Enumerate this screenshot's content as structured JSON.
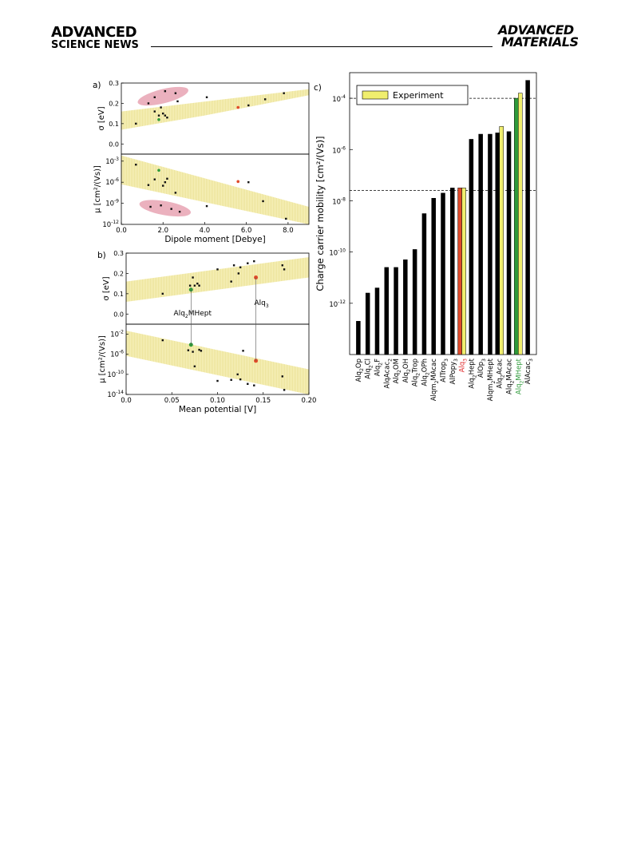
{
  "header": {
    "journal_left_line1": "ADVANCED",
    "journal_left_line2": "SCIENCE NEWS",
    "journal_right_line1": "ADVANCED",
    "journal_right_line2": "MATERIALS"
  },
  "colors": {
    "band_fill": "#f7f1bb",
    "band_stripe": "#ece39a",
    "cluster_fill": "#e8a3b3",
    "point_black": "#111111",
    "highlight_green": "#2e9a3a",
    "highlight_red": "#e04a2a",
    "experiment_yellow": "#f0ee6e",
    "label_red": "#e0282a",
    "label_green": "#2e9a3a"
  },
  "chart_data": [
    {
      "panel": "a",
      "type": "scatter",
      "subplot": "top",
      "panel_label": "a)",
      "xlabel": "",
      "ylabel": "σ [eV]",
      "xlim": [
        0,
        9
      ],
      "ylim": [
        -0.05,
        0.3
      ],
      "y_ticks": [
        "0.0",
        "0.1",
        "0.2",
        "0.3"
      ],
      "points": [
        {
          "x": 0.7,
          "y": 0.1
        },
        {
          "x": 1.3,
          "y": 0.2
        },
        {
          "x": 1.6,
          "y": 0.23
        },
        {
          "x": 2.1,
          "y": 0.26
        },
        {
          "x": 2.6,
          "y": 0.25
        },
        {
          "x": 2.7,
          "y": 0.21
        },
        {
          "x": 1.6,
          "y": 0.16
        },
        {
          "x": 1.8,
          "y": 0.14
        },
        {
          "x": 2.0,
          "y": 0.15
        },
        {
          "x": 2.1,
          "y": 0.14
        },
        {
          "x": 2.2,
          "y": 0.13
        },
        {
          "x": 1.9,
          "y": 0.18
        },
        {
          "x": 4.1,
          "y": 0.23
        },
        {
          "x": 6.1,
          "y": 0.19
        },
        {
          "x": 6.9,
          "y": 0.22
        },
        {
          "x": 7.8,
          "y": 0.25
        }
      ],
      "highlight_points": [
        {
          "x": 1.8,
          "y": 0.12,
          "color": "green"
        },
        {
          "x": 5.6,
          "y": 0.18,
          "color": "red"
        }
      ]
    },
    {
      "panel": "a",
      "type": "scatter",
      "subplot": "bottom",
      "xlabel": "Dipole moment [Debye]",
      "ylabel": "μ [cm²/(Vs)]",
      "xlim": [
        0,
        9
      ],
      "ylim_log10": [
        -12,
        -2
      ],
      "x_ticks": [
        "0.0",
        "2.0",
        "4.0",
        "6.0",
        "8.0"
      ],
      "y_ticks": [
        {
          "base": "10",
          "exp": "-3"
        },
        {
          "base": "10",
          "exp": "-6"
        },
        {
          "base": "10",
          "exp": "-9"
        },
        {
          "base": "10",
          "exp": "-12"
        }
      ],
      "points_log10": [
        {
          "x": 0.7,
          "y": -3.5
        },
        {
          "x": 1.3,
          "y": -6.4
        },
        {
          "x": 1.6,
          "y": -5.6
        },
        {
          "x": 2.0,
          "y": -6.5
        },
        {
          "x": 2.1,
          "y": -6.0
        },
        {
          "x": 2.2,
          "y": -5.5
        },
        {
          "x": 2.6,
          "y": -7.5
        },
        {
          "x": 6.1,
          "y": -6.0
        },
        {
          "x": 6.8,
          "y": -8.7
        },
        {
          "x": 4.1,
          "y": -9.4
        },
        {
          "x": 7.9,
          "y": -11.2
        },
        {
          "x": 1.4,
          "y": -9.5
        },
        {
          "x": 1.9,
          "y": -9.3
        },
        {
          "x": 2.4,
          "y": -9.8
        },
        {
          "x": 2.8,
          "y": -10.2
        }
      ],
      "highlight_points": [
        {
          "x": 1.8,
          "y": -4.3,
          "color": "green"
        },
        {
          "x": 5.6,
          "y": -5.9,
          "color": "red"
        }
      ]
    },
    {
      "panel": "b",
      "type": "scatter",
      "subplot": "top",
      "panel_label": "b)",
      "xlabel": "",
      "ylabel": "σ [eV]",
      "xlim": [
        0,
        0.2
      ],
      "ylim": [
        -0.05,
        0.3
      ],
      "y_ticks": [
        "0.0",
        "0.1",
        "0.2",
        "0.3"
      ],
      "points": [
        {
          "x": 0.04,
          "y": 0.1
        },
        {
          "x": 0.07,
          "y": 0.14
        },
        {
          "x": 0.073,
          "y": 0.18
        },
        {
          "x": 0.075,
          "y": 0.14
        },
        {
          "x": 0.078,
          "y": 0.15
        },
        {
          "x": 0.08,
          "y": 0.14
        },
        {
          "x": 0.1,
          "y": 0.22
        },
        {
          "x": 0.115,
          "y": 0.16
        },
        {
          "x": 0.118,
          "y": 0.24
        },
        {
          "x": 0.123,
          "y": 0.2
        },
        {
          "x": 0.125,
          "y": 0.23
        },
        {
          "x": 0.133,
          "y": 0.25
        },
        {
          "x": 0.14,
          "y": 0.26
        },
        {
          "x": 0.171,
          "y": 0.24
        },
        {
          "x": 0.173,
          "y": 0.22
        }
      ],
      "highlight_points": [
        {
          "x": 0.071,
          "y": 0.12,
          "color": "green",
          "label_base": "Alq",
          "label_sub": "2",
          "label_rest": "MHept"
        },
        {
          "x": 0.142,
          "y": 0.18,
          "color": "red",
          "label_base": "Alq",
          "label_sub": "3",
          "label_rest": ""
        }
      ]
    },
    {
      "panel": "b",
      "type": "scatter",
      "subplot": "bottom",
      "xlabel": "Mean potential [V]",
      "ylabel": "μ [cm²/(Vs)]",
      "xlim": [
        0,
        0.2
      ],
      "ylim_log10": [
        -14,
        0
      ],
      "x_ticks": [
        "0.0",
        "0.05",
        "0.10",
        "0.15",
        "0.20"
      ],
      "y_ticks": [
        {
          "base": "10",
          "exp": "-2"
        },
        {
          "base": "10",
          "exp": "-6"
        },
        {
          "base": "10",
          "exp": "-10"
        },
        {
          "base": "10",
          "exp": "-14"
        }
      ],
      "points_log10": [
        {
          "x": 0.04,
          "y": -3.2
        },
        {
          "x": 0.068,
          "y": -5.2
        },
        {
          "x": 0.073,
          "y": -5.5
        },
        {
          "x": 0.075,
          "y": -8.4
        },
        {
          "x": 0.08,
          "y": -5.1
        },
        {
          "x": 0.082,
          "y": -5.3
        },
        {
          "x": 0.1,
          "y": -11.3
        },
        {
          "x": 0.115,
          "y": -11.1
        },
        {
          "x": 0.122,
          "y": -10.0
        },
        {
          "x": 0.125,
          "y": -11.0
        },
        {
          "x": 0.128,
          "y": -5.3
        },
        {
          "x": 0.133,
          "y": -11.9
        },
        {
          "x": 0.14,
          "y": -12.2
        },
        {
          "x": 0.171,
          "y": -10.4
        },
        {
          "x": 0.173,
          "y": -13.1
        }
      ],
      "highlight_points": [
        {
          "x": 0.071,
          "y": -4.1,
          "color": "green"
        },
        {
          "x": 0.142,
          "y": -7.3,
          "color": "red"
        }
      ]
    },
    {
      "panel": "c",
      "type": "bar",
      "panel_label": "c)",
      "ylabel": "Charge carrier mobility [cm²/(Vs)]",
      "ylim_log10": [
        -14,
        -3
      ],
      "y_ticks": [
        {
          "base": "10",
          "exp": "-4"
        },
        {
          "base": "10",
          "exp": "-6"
        },
        {
          "base": "10",
          "exp": "-8"
        },
        {
          "base": "10",
          "exp": "-10"
        },
        {
          "base": "10",
          "exp": "-12"
        }
      ],
      "legend": {
        "label": "Experiment",
        "position": "top-left"
      },
      "dashed_lines_log10": [
        -4,
        -7.6
      ],
      "categories": [
        {
          "base": "Alq",
          "sub": "2",
          "rest": "Op",
          "color": "black"
        },
        {
          "base": "Alq",
          "sub": "2",
          "rest": "Cl",
          "color": "black"
        },
        {
          "base": "Alq",
          "sub": "2",
          "rest": "F",
          "color": "black"
        },
        {
          "base": "AlqAcac",
          "sub": "2",
          "rest": "",
          "color": "black"
        },
        {
          "base": "Alq",
          "sub": "2",
          "rest": "OM",
          "color": "black"
        },
        {
          "base": "Alq",
          "sub": "2",
          "rest": "OH",
          "color": "black"
        },
        {
          "base": "Alq",
          "sub": "2",
          "rest": "Trop",
          "color": "black"
        },
        {
          "base": "Alq",
          "sub": "2",
          "rest": "OPh",
          "color": "black"
        },
        {
          "base": "Alqm",
          "sub": "2",
          "rest": "MAcac",
          "color": "black"
        },
        {
          "base": "AlTrop",
          "sub": "3",
          "rest": "",
          "color": "black"
        },
        {
          "base": "AlPopy",
          "sub": "3",
          "rest": "",
          "color": "black"
        },
        {
          "base": "Alq",
          "sub": "3",
          "rest": "",
          "color": "red"
        },
        {
          "base": "Alq",
          "sub": "2",
          "rest": "Hept",
          "color": "black"
        },
        {
          "base": "AlOp",
          "sub": "3",
          "rest": "",
          "color": "black"
        },
        {
          "base": "Alqm",
          "sub": "2",
          "rest": "MHept",
          "color": "black"
        },
        {
          "base": "Alq",
          "sub": "2",
          "rest": "Acac",
          "color": "black"
        },
        {
          "base": "Alq",
          "sub": "2",
          "rest": "MAcac",
          "color": "black"
        },
        {
          "base": "Alq",
          "sub": "2",
          "rest": "MHept",
          "color": "green"
        },
        {
          "base": "AlAcac",
          "sub": "3",
          "rest": "",
          "color": "black"
        }
      ],
      "series": [
        {
          "name": "",
          "kind": "simulation",
          "values_log10": [
            -12.7,
            -11.6,
            -11.4,
            -10.6,
            -10.6,
            -10.3,
            -9.9,
            -8.5,
            -7.9,
            -7.7,
            -7.5,
            -7.5,
            -5.6,
            -5.4,
            -5.4,
            -5.35,
            -5.3,
            -4.0,
            -3.3
          ]
        },
        {
          "name": "Experiment",
          "kind": "experiment",
          "values_log10": [
            null,
            null,
            null,
            null,
            null,
            null,
            null,
            null,
            null,
            null,
            null,
            -7.5,
            null,
            null,
            null,
            -5.1,
            null,
            -3.8,
            null
          ]
        }
      ]
    }
  ]
}
